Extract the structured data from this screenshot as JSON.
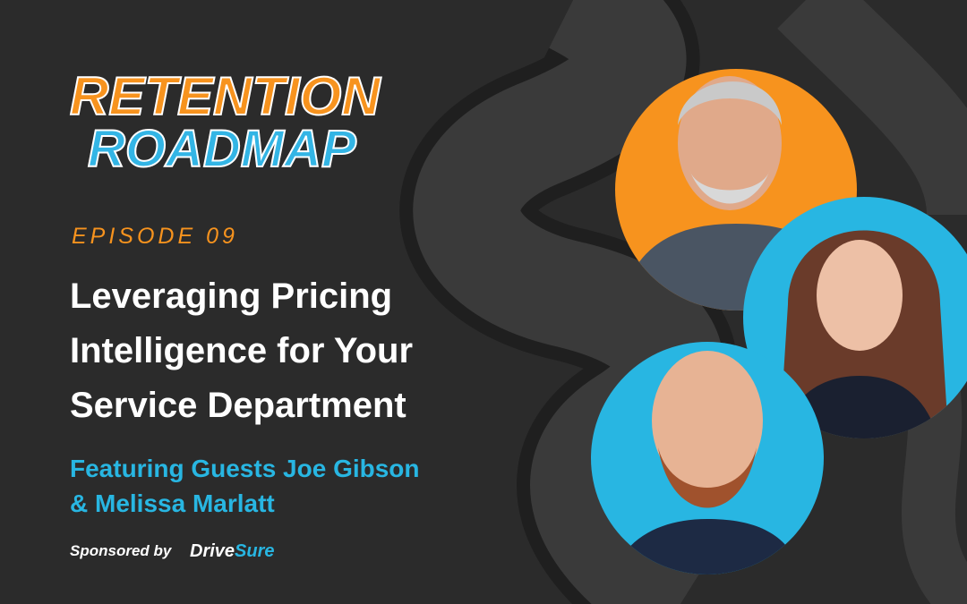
{
  "logo": {
    "line1": "RETENTION",
    "line2": "ROADMAP"
  },
  "episode": "EPISODE 09",
  "title": {
    "lines": [
      "Leveraging Pricing",
      "Intelligence for Your",
      "Service Department"
    ]
  },
  "guests": {
    "lines": [
      "Featuring Guests Joe Gibson",
      "& Melissa Marlatt"
    ]
  },
  "sponsor": {
    "label": "Sponsored by",
    "brand_part1": "Drive",
    "brand_part2": "Sure"
  }
}
